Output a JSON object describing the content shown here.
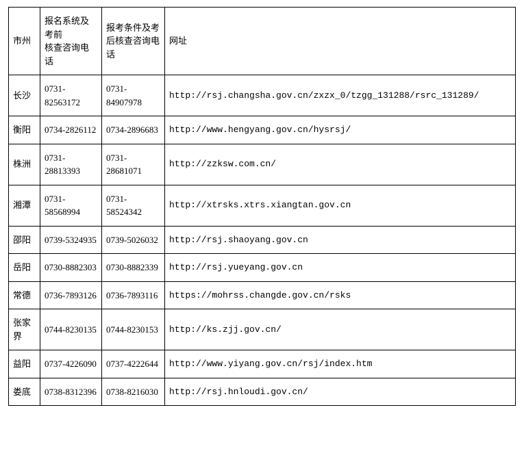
{
  "table": {
    "headers": {
      "city": "市州",
      "phone1_line1": "报名系统及考前",
      "phone1_line2": "核查咨询电话",
      "phone2_line1": "报考条件及考后核查咨询电话",
      "url": "网址"
    },
    "rows": [
      {
        "city": "长沙",
        "phone1": "0731-82563172",
        "phone2": "0731-84907978",
        "url": "http://rsj.changsha.gov.cn/zxzx_0/tzgg_131288/rsrc_131289/"
      },
      {
        "city": "衡阳",
        "phone1": "0734-2826112",
        "phone2": "0734-2896683",
        "url": "http://www.hengyang.gov.cn/hysrsj/"
      },
      {
        "city": "株洲",
        "phone1": "0731-28813393",
        "phone2": "0731-28681071",
        "url": "http://zzksw.com.cn/"
      },
      {
        "city": "湘潭",
        "phone1": "0731-58568994",
        "phone2": "0731-58524342",
        "url": "http://xtrsks.xtrs.xiangtan.gov.cn"
      },
      {
        "city": "邵阳",
        "phone1": "0739-5324935",
        "phone2": "0739-5026032",
        "url": "http://rsj.shaoyang.gov.cn"
      },
      {
        "city": "岳阳",
        "phone1": "0730-8882303",
        "phone2": "0730-8882339",
        "url": "http://rsj.yueyang.gov.cn"
      },
      {
        "city": "常德",
        "phone1": "0736-7893126",
        "phone2": "0736-7893116",
        "url": "https://mohrss.changde.gov.cn/rsks"
      },
      {
        "city": "张家界",
        "phone1": "0744-8230135",
        "phone2": "0744-8230153",
        "url": "http://ks.zjj.gov.cn/"
      },
      {
        "city": "益阳",
        "phone1": "0737-4226090",
        "phone2": "0737-4222644",
        "url": "http://www.yiyang.gov.cn/rsj/index.htm"
      },
      {
        "city": "娄底",
        "phone1": "0738-8312396",
        "phone2": "0738-8216030",
        "url": "http://rsj.hnloudi.gov.cn/"
      }
    ],
    "styles": {
      "border_color": "#000000",
      "background_color": "#ffffff",
      "font_family": "SimSun",
      "font_size": 13,
      "url_font_family": "Courier New",
      "col_widths": {
        "city": 46,
        "phone1": 90,
        "phone2": 92
      }
    }
  }
}
